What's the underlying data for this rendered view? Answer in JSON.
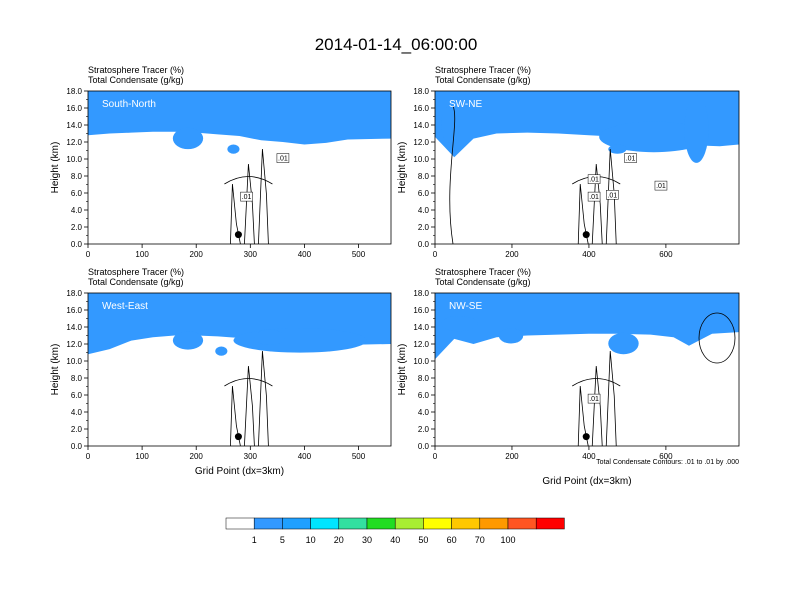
{
  "page_title": "2014-01-14_06:00:00",
  "panel_header": {
    "line1": "Stratosphere Tracer   (%)",
    "line2": "Total Condensate   (g/kg)"
  },
  "footnote": "Total Condensate Contours: .01 to .01 by .000",
  "colors": {
    "fill_levels": [
      "#ffffff",
      "#3399ff",
      "#1fa0ff",
      "#00e5ff",
      "#33e0a0",
      "#22dd22",
      "#a8ee33",
      "#ffff00",
      "#ffc800",
      "#ff9900",
      "#ff5522",
      "#ff0000"
    ],
    "cloud_blob": "#3399ff",
    "contour": "#000000",
    "marker": "#000000"
  },
  "colorbar": {
    "labels": [
      "1",
      "5",
      "10",
      "20",
      "30",
      "40",
      "50",
      "60",
      "70",
      "100"
    ],
    "box_colors": [
      "#ffffff",
      "#3399ff",
      "#1fa0ff",
      "#00e5ff",
      "#33e0a0",
      "#22dd22",
      "#a8ee33",
      "#ffff00",
      "#ffc800",
      "#ff9900",
      "#ff5522",
      "#ff0000"
    ]
  },
  "chart_data": [
    {
      "type": "heatmap",
      "title": "South-North",
      "xlabel": "",
      "ylabel": "Height (km)",
      "xlim": [
        0,
        560
      ],
      "ylim": [
        0,
        18
      ],
      "x_ticks": [
        "0",
        "100",
        "200",
        "300",
        "400",
        "500"
      ],
      "x_tick_values": [
        0,
        100,
        200,
        300,
        400,
        500
      ],
      "y_ticks": [
        "0.0",
        "2.0",
        "4.0",
        "6.0",
        "8.0",
        "10.0",
        "12.0",
        "14.0",
        "16.0",
        "18.0"
      ],
      "y_tick_values": [
        0,
        2,
        4,
        6,
        8,
        10,
        12,
        14,
        16,
        18
      ],
      "tracer_top_km": [
        15.6,
        15.8,
        15.9,
        16.0,
        16.0,
        15.9,
        15.7,
        15.5,
        15.0,
        14.8,
        14.5,
        14.7,
        15.1,
        15.2
      ],
      "tracer_band_x": [
        0,
        40,
        80,
        120,
        160,
        200,
        240,
        280,
        320,
        360,
        400,
        440,
        480,
        560
      ],
      "contour_labels": [
        ".01",
        ".01"
      ],
      "marker": {
        "x": 278,
        "y": 1.1
      }
    },
    {
      "type": "heatmap",
      "title": "SW-NE",
      "xlabel": "",
      "ylabel": "Height (km)",
      "xlim": [
        0,
        790
      ],
      "ylim": [
        0,
        18
      ],
      "x_ticks": [
        "0",
        "200",
        "400",
        "600"
      ],
      "x_tick_values": [
        0,
        200,
        400,
        600
      ],
      "y_ticks": [
        "0.0",
        "2.0",
        "4.0",
        "6.0",
        "8.0",
        "10.0",
        "12.0",
        "14.0",
        "16.0",
        "18.0"
      ],
      "y_tick_values": [
        0,
        2,
        4,
        6,
        8,
        10,
        12,
        14,
        16,
        18
      ],
      "tracer_top_km": [
        15.4,
        13.0,
        15.2,
        15.8,
        15.9,
        15.8,
        15.6,
        15.4,
        15.0,
        14.6,
        14.4,
        14.3,
        14.5
      ],
      "tracer_band_x": [
        0,
        50,
        100,
        160,
        240,
        320,
        400,
        480,
        560,
        620,
        680,
        740,
        790
      ],
      "contour_labels": [
        ".01",
        ".01",
        ".01",
        ".01",
        ".01"
      ],
      "marker": {
        "x": 393,
        "y": 1.1
      }
    },
    {
      "type": "heatmap",
      "title": "West-East",
      "xlabel": "Grid Point (dx=3km)",
      "ylabel": "Height (km)",
      "xlim": [
        0,
        560
      ],
      "ylim": [
        0,
        18
      ],
      "x_ticks": [
        "0",
        "100",
        "200",
        "300",
        "400",
        "500"
      ],
      "x_tick_values": [
        0,
        100,
        200,
        300,
        400,
        500
      ],
      "y_ticks": [
        "0.0",
        "2.0",
        "4.0",
        "6.0",
        "8.0",
        "10.0",
        "12.0",
        "14.0",
        "16.0",
        "18.0"
      ],
      "y_tick_values": [
        0,
        2,
        4,
        6,
        8,
        10,
        12,
        14,
        16,
        18
      ],
      "tracer_top_km": [
        13.6,
        14.2,
        15.2,
        15.6,
        15.8,
        15.8,
        15.7,
        15.5,
        15.3,
        15.0,
        14.8,
        14.6,
        14.7,
        14.8
      ],
      "tracer_band_x": [
        0,
        40,
        80,
        120,
        160,
        200,
        240,
        280,
        320,
        360,
        400,
        440,
        480,
        560
      ],
      "contour_labels": [],
      "marker": {
        "x": 278,
        "y": 1.1
      }
    },
    {
      "type": "heatmap",
      "title": "NW-SE",
      "xlabel": "Grid Point (dx=3km)",
      "ylabel": "Height (km)",
      "xlim": [
        0,
        790
      ],
      "ylim": [
        0,
        18
      ],
      "x_ticks": [
        "0",
        "200",
        "400",
        "600"
      ],
      "x_tick_values": [
        0,
        200,
        400,
        600
      ],
      "y_ticks": [
        "0.0",
        "2.0",
        "4.0",
        "6.0",
        "8.0",
        "10.0",
        "12.0",
        "14.0",
        "16.0",
        "18.0"
      ],
      "y_tick_values": [
        0,
        2,
        4,
        6,
        8,
        10,
        12,
        14,
        16,
        18
      ],
      "tracer_top_km": [
        13.0,
        15.4,
        14.8,
        15.6,
        15.8,
        15.9,
        16.0,
        16.0,
        15.9,
        15.6,
        14.6,
        16.0,
        16.2
      ],
      "tracer_band_x": [
        0,
        50,
        100,
        160,
        240,
        320,
        400,
        480,
        560,
        620,
        660,
        720,
        790
      ],
      "contour_labels": [
        ".01"
      ],
      "marker": {
        "x": 393,
        "y": 1.1
      }
    }
  ]
}
